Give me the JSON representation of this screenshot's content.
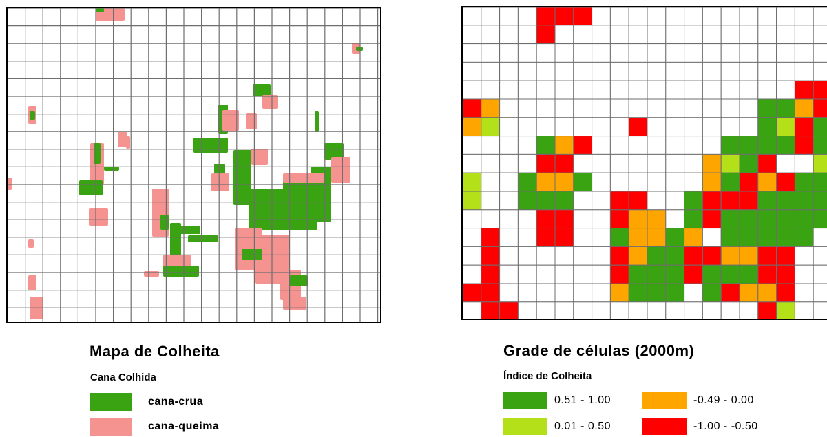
{
  "left_map": {
    "legend_title": "Mapa de Colheita",
    "legend_subtitle": "Cana Colhida",
    "legend_items": [
      {
        "label": "cana-crua",
        "color": "#3aa312"
      },
      {
        "label": "cana-queima",
        "color": "#f59391"
      }
    ]
  },
  "right_map": {
    "legend_title": "Grade de células (2000m)",
    "legend_subtitle": "Índice de Colheita",
    "legend_items": [
      {
        "label": "0.51 - 1.00",
        "color": "#3aa312"
      },
      {
        "label": "0.01 - 0.50",
        "color": "#b4e01a"
      },
      {
        "label": "-0.49 - 0.00",
        "color": "#ffa500"
      },
      {
        "label": "-1.00 - -0.50",
        "color": "#ff0000"
      }
    ]
  },
  "colors": {
    "grid_line": "#6e6e6e",
    "crua": "#3aa312",
    "queima": "#f59391",
    "class_g": "#3aa312",
    "class_l": "#b4e01a",
    "class_o": "#ffa500",
    "class_r": "#ff0000"
  },
  "grid_classes": [
    "....RRR...............RR..",
    "....R.................R...",
    "......................LG..",
    "..........................",
    "..................RR......",
    "RO..............GGOR..G...",
    "OL.......R......GLRG..G...",
    "....GOR.......GGGGRGG.G...",
    "....RR.......OLGR..LGOR...",
    "L..GOOG......OGRORGGGR....",
    "L..GGG..RR..GRRRGGGGG.....",
    "....RR..ROO.GRGGGGGG......",
    ".R..RR..GOOGO.GGGGG.......",
    ".R......ROGGRROORR........",
    ".R......RGGGRGGGRR........",
    "RR......OGGG.GROOR........",
    ".RR.............RL........",
    ".R..............RR........"
  ]
}
